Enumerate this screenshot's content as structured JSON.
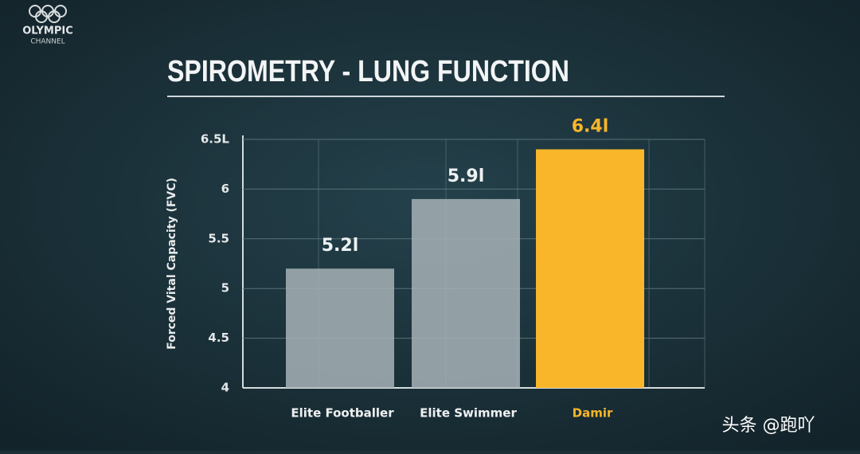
{
  "logo": {
    "line1": "OLYMPIC",
    "line2": "CHANNEL"
  },
  "watermark": "头条 @跑吖",
  "chart_data": {
    "type": "bar",
    "title": "SPIROMETRY - LUNG FUNCTION",
    "y_label": "Forced Vital Capacity (FVC)",
    "categories": [
      "Elite Footballer",
      "Elite Swimmer",
      "Damir"
    ],
    "values": [
      5.2,
      5.9,
      6.4
    ],
    "value_labels": [
      "5.2l",
      "5.9l",
      "6.4l"
    ],
    "colors": [
      "#a7b3b7",
      "#a7b3b7",
      "#f9b62a"
    ],
    "ylim": [
      4,
      6.5
    ],
    "yticks": [
      4,
      4.5,
      5,
      5.5,
      6,
      {
        "value": 6.5,
        "label": "6.5L"
      }
    ],
    "grid": true
  }
}
